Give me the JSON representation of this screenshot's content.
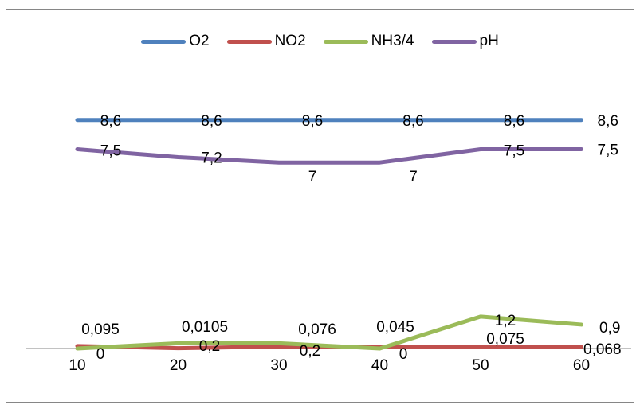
{
  "chart_data": {
    "type": "line",
    "title": "",
    "xlabel": "",
    "ylabel": "",
    "categories": [
      "10",
      "20",
      "30",
      "40",
      "50",
      "60"
    ],
    "ylim": [
      0,
      10
    ],
    "grid": false,
    "legend_position": "top",
    "series": [
      {
        "name": "O2",
        "color": "#4F81BD",
        "values": [
          8.6,
          8.6,
          8.6,
          8.6,
          8.6,
          8.6
        ],
        "labels": [
          "8,6",
          "8,6",
          "8,6",
          "8,6",
          "8,6",
          "8,6"
        ]
      },
      {
        "name": "NO2",
        "color": "#C0504D",
        "values": [
          0.095,
          0.0105,
          0.076,
          0.045,
          0.075,
          0.068
        ],
        "labels": [
          "0,095",
          "0,0105",
          "0,076",
          "0,045",
          "0,075",
          "0,068"
        ]
      },
      {
        "name": "NH3/4",
        "color": "#9BBB59",
        "values": [
          0,
          0.2,
          0.2,
          0,
          1.2,
          0.9
        ],
        "labels": [
          "0",
          "0,2",
          "0,2",
          "0",
          "1,2",
          "0,9"
        ]
      },
      {
        "name": "pH",
        "color": "#8064A2",
        "values": [
          7.5,
          7.2,
          7.0,
          7.0,
          7.5,
          7.5
        ],
        "labels": [
          "7,5",
          "7,2",
          "7",
          "7",
          "7,5",
          "7,5"
        ]
      }
    ]
  }
}
